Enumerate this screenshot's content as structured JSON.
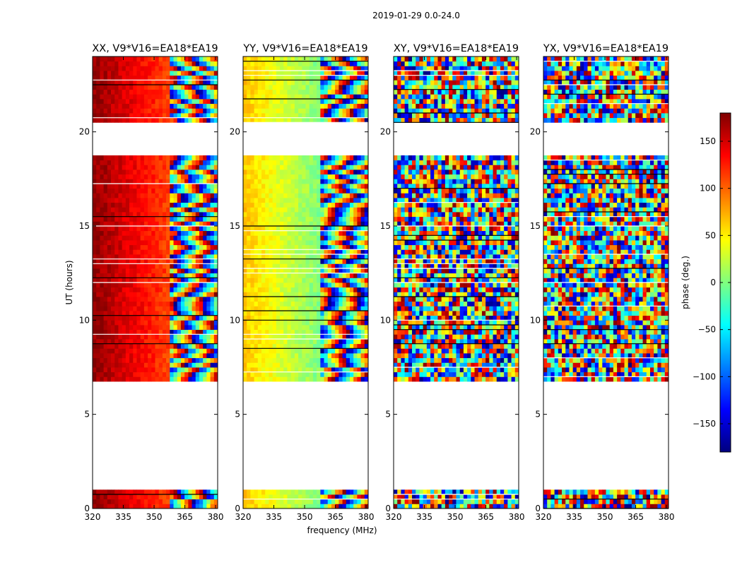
{
  "chart_data": {
    "type": "heatmap",
    "suptitle": "2019-01-29 0.0-24.0",
    "xlabel": "frequency (MHz)",
    "ylabel": "UT (hours)",
    "colorbar_label": "phase (deg.)",
    "colormap": "jet",
    "xlim": [
      320,
      381
    ],
    "ylim": [
      0,
      24
    ],
    "clim": [
      -180,
      180
    ],
    "xticks": [
      320,
      335,
      350,
      365,
      380
    ],
    "yticks": [
      0,
      5,
      10,
      15,
      20
    ],
    "colorbar_ticks": [
      -150,
      -100,
      -50,
      0,
      50,
      100,
      150
    ],
    "gap_hours": [
      [
        1.1,
        6.8
      ],
      [
        18.7,
        20.5
      ]
    ],
    "panels": [
      {
        "title": "XX, V9*V16=EA18*EA19",
        "smooth_phase_deg": [
          175,
          110
        ],
        "coherent_until_mhz": 358
      },
      {
        "title": "YY, V9*V16=EA18*EA19",
        "smooth_phase_deg": [
          65,
          0
        ],
        "coherent_until_mhz": 358
      },
      {
        "title": "XY, V9*V16=EA18*EA19",
        "smooth_phase_deg": null,
        "coherent_until_mhz": null
      },
      {
        "title": "YX, V9*V16=EA18*EA19",
        "smooth_phase_deg": null,
        "coherent_until_mhz": null
      }
    ]
  },
  "colors": {
    "jet": [
      "#00007f",
      "#0000ff",
      "#007fff",
      "#00ffff",
      "#7fff7f",
      "#ffff00",
      "#ff7f00",
      "#ff0000",
      "#7f0000"
    ]
  }
}
